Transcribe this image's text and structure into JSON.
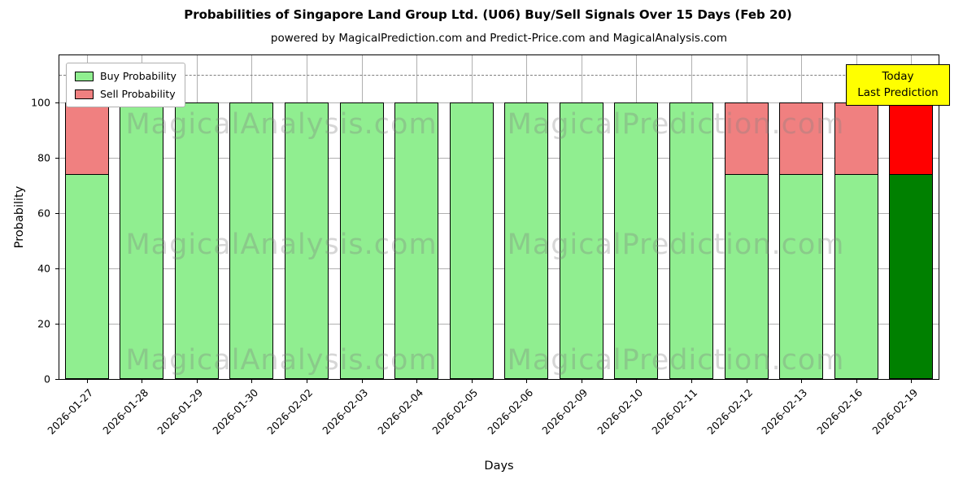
{
  "title": "Probabilities of Singapore Land Group Ltd. (U06) Buy/Sell Signals Over 15 Days (Feb 20)",
  "subtitle": "powered by MagicalPrediction.com and Predict-Price.com and MagicalAnalysis.com",
  "legend": [
    {
      "label": "Buy Probability",
      "color": "#90ee90"
    },
    {
      "label": "Sell Probability",
      "color": "#f08080"
    }
  ],
  "annotation": {
    "line1": "Today",
    "line2": "Last Prediction",
    "bg_color": "#ffff00"
  },
  "watermarks": {
    "left_text": "MagicalAnalysis.com",
    "right_text": "MagicalPrediction.com"
  },
  "chart_data": {
    "type": "bar",
    "stacked": true,
    "title": "Probabilities of Singapore Land Group Ltd. (U06) Buy/Sell Signals Over 15 Days (Feb 20)",
    "xlabel": "Days",
    "ylabel": "Probability",
    "ylim": [
      0,
      117
    ],
    "yticks": [
      0,
      20,
      40,
      60,
      80,
      100
    ],
    "grid": true,
    "dashed_line_y": 110,
    "legend_position": "upper left",
    "categories": [
      "2026-01-27",
      "2026-01-28",
      "2026-01-29",
      "2026-01-30",
      "2026-02-02",
      "2026-02-03",
      "2026-02-04",
      "2026-02-05",
      "2026-02-06",
      "2026-02-09",
      "2026-02-10",
      "2026-02-11",
      "2026-02-12",
      "2026-02-13",
      "2026-02-16",
      "2026-02-19"
    ],
    "series": [
      {
        "name": "Buy Probability",
        "values": [
          74,
          100,
          100,
          100,
          100,
          100,
          100,
          100,
          100,
          100,
          100,
          100,
          74,
          74,
          74,
          74
        ]
      },
      {
        "name": "Sell Probability",
        "values": [
          26,
          0,
          0,
          0,
          0,
          0,
          0,
          0,
          0,
          0,
          0,
          0,
          26,
          26,
          26,
          26
        ]
      }
    ],
    "colors": {
      "buy": "#90ee90",
      "sell": "#f08080",
      "buy_today": "#008000",
      "sell_today": "#ff0000"
    },
    "today_index": 15
  }
}
